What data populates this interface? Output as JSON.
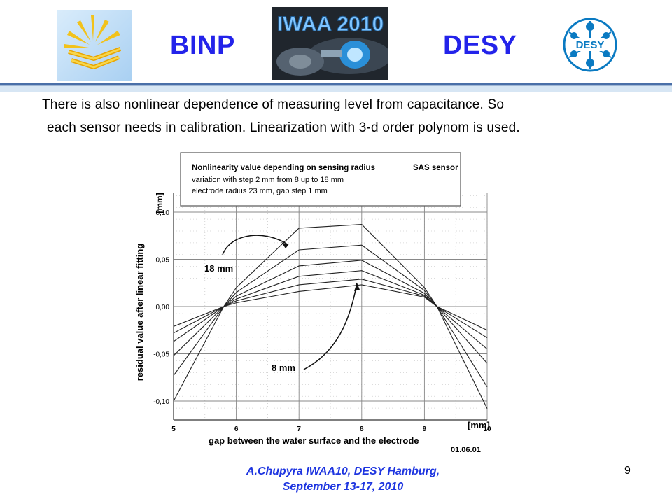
{
  "header": {
    "left_label": "BINP",
    "right_label": "DESY",
    "event_logo_text": "IWAA 2010",
    "desy_logo_text": "DESY"
  },
  "body": {
    "line1": "There is also nonlinear dependence of measuring level from capacitance. So",
    "line2": "each sensor needs in calibration. Linearization with 3-d order polynom is used."
  },
  "footer": {
    "line1": "A.Chupyra   IWAA10,   DESY Hamburg,",
    "line2": "September  13-17, 2010",
    "page_number": "9"
  },
  "colors": {
    "heading": "#2323ea",
    "footer": "#1f36e0",
    "rule": "#4a6fa8"
  },
  "chart_data": {
    "type": "line",
    "legend_box": {
      "title": "Nonlinearity value depending on sensing radius",
      "sensor": "SAS sensor",
      "line2": "variation with step 2 mm from 8 up to 18 mm",
      "line3": "electrode radius 23 mm, gap step 1 mm"
    },
    "x": [
      5,
      5.8,
      6,
      7,
      8,
      9,
      9.2,
      10
    ],
    "x_tick_labels": [
      "5",
      "6",
      "7",
      "8",
      "9",
      "10"
    ],
    "y_tick_labels": [
      "0,10",
      "0,05",
      "0,00",
      "-0,05",
      "-0,10"
    ],
    "xlabel": "gap between the water surface and the electrode",
    "xunit": "[mm]",
    "ylabel": "residual value after linear fitting",
    "yunit": "[mm]",
    "xlim": [
      5,
      10
    ],
    "ylim": [
      -0.12,
      0.12
    ],
    "grid": true,
    "series": [
      {
        "values": [
          -0.1,
          0.0,
          0.02,
          0.083,
          0.087,
          0.02,
          0.0,
          -0.108
        ]
      },
      {
        "values": [
          -0.073,
          0.0,
          0.015,
          0.06,
          0.065,
          0.017,
          0.0,
          -0.085
        ]
      },
      {
        "values": [
          -0.052,
          0.0,
          0.011,
          0.043,
          0.049,
          0.014,
          0.0,
          -0.06
        ]
      },
      {
        "values": [
          -0.037,
          0.0,
          0.008,
          0.032,
          0.038,
          0.012,
          0.0,
          -0.045
        ]
      },
      {
        "values": [
          -0.028,
          0.0,
          0.006,
          0.023,
          0.029,
          0.011,
          0.0,
          -0.033
        ]
      },
      {
        "values": [
          -0.021,
          0.0,
          0.004,
          0.016,
          0.023,
          0.01,
          0.0,
          -0.025
        ]
      }
    ],
    "annotations": [
      "18 mm",
      "8 mm"
    ],
    "date_stamp": "01.06.01"
  }
}
